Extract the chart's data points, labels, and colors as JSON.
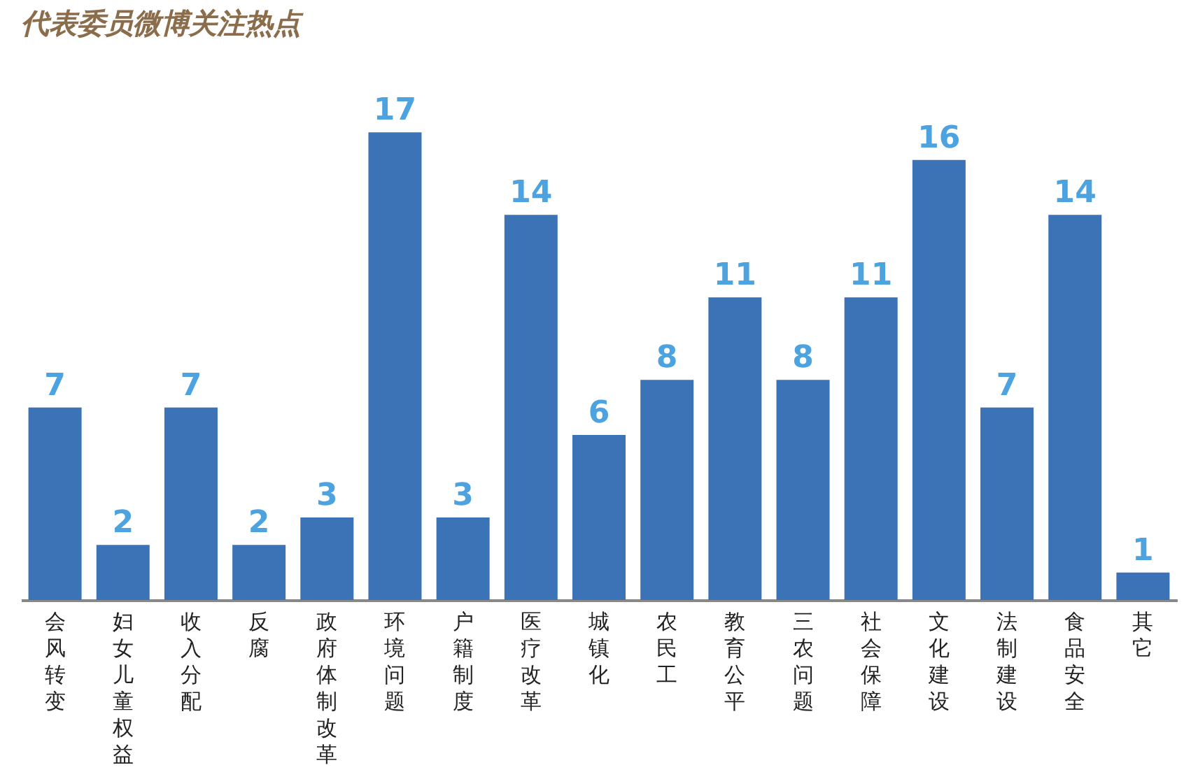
{
  "chart_data": {
    "type": "bar",
    "title": "代表委员微博关注热点",
    "categories": [
      "会风转变",
      "妇女儿童权益",
      "收入分配",
      "反腐",
      "政府体制改革",
      "环境问题",
      "户籍制度",
      "医疗改革",
      "城镇化",
      "农民工",
      "教育公平",
      "三农问题",
      "社会保障",
      "文化建设",
      "法制建设",
      "食品安全",
      "其它"
    ],
    "values": [
      7,
      2,
      7,
      2,
      3,
      17,
      3,
      14,
      6,
      8,
      11,
      8,
      11,
      16,
      7,
      14,
      1
    ],
    "color": "#3b73b6",
    "data_labels": true
  }
}
